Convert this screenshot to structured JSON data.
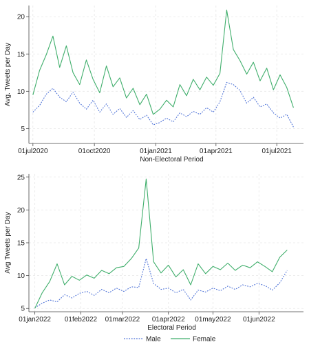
{
  "chart_data": [
    {
      "type": "line",
      "x_type": "date",
      "xlabel": "Non-Electoral Period",
      "ylabel": "Avg. Tweets per Day",
      "xlim": [
        "2020-06-25",
        "2021-08-10"
      ],
      "ylim": [
        3,
        21.5
      ],
      "yticks": [
        5,
        10,
        15,
        20
      ],
      "xticks": [
        {
          "date": "2020-07-01",
          "label": "01jul2020"
        },
        {
          "date": "2020-10-01",
          "label": "01oct2020"
        },
        {
          "date": "2021-01-01",
          "label": "01jan2021"
        },
        {
          "date": "2021-04-01",
          "label": "01apr2021"
        },
        {
          "date": "2021-07-01",
          "label": "01jul2021"
        }
      ],
      "grid": true,
      "series": [
        {
          "name": "Male",
          "color": "#4a6fd6",
          "style": "dotted",
          "x": [
            "2020-07-01",
            "2020-07-11",
            "2020-07-21",
            "2020-07-31",
            "2020-08-10",
            "2020-08-20",
            "2020-08-30",
            "2020-09-09",
            "2020-09-19",
            "2020-09-29",
            "2020-10-09",
            "2020-10-19",
            "2020-10-29",
            "2020-11-08",
            "2020-11-18",
            "2020-11-28",
            "2020-12-08",
            "2020-12-18",
            "2020-12-28",
            "2021-01-07",
            "2021-01-17",
            "2021-01-27",
            "2021-02-06",
            "2021-02-16",
            "2021-02-26",
            "2021-03-08",
            "2021-03-18",
            "2021-03-28",
            "2021-04-07",
            "2021-04-17",
            "2021-04-27",
            "2021-05-07",
            "2021-05-17",
            "2021-05-27",
            "2021-06-06",
            "2021-06-16",
            "2021-06-26",
            "2021-07-06",
            "2021-07-16",
            "2021-07-26"
          ],
          "values": [
            7.2,
            8.1,
            9.6,
            10.4,
            9.2,
            8.6,
            9.9,
            8.4,
            7.6,
            8.8,
            7.2,
            8.3,
            6.9,
            7.7,
            6.5,
            7.4,
            6.2,
            6.8,
            5.5,
            5.8,
            6.4,
            5.9,
            7.1,
            6.6,
            7.3,
            6.9,
            7.8,
            7.2,
            8.6,
            11.2,
            10.9,
            10.1,
            8.4,
            9.2,
            7.9,
            8.3,
            7.1,
            6.4,
            6.9,
            5.2
          ]
        },
        {
          "name": "Female",
          "color": "#3fae6b",
          "style": "solid",
          "x": [
            "2020-07-01",
            "2020-07-11",
            "2020-07-21",
            "2020-07-31",
            "2020-08-10",
            "2020-08-20",
            "2020-08-30",
            "2020-09-09",
            "2020-09-19",
            "2020-09-29",
            "2020-10-09",
            "2020-10-19",
            "2020-10-29",
            "2020-11-08",
            "2020-11-18",
            "2020-11-28",
            "2020-12-08",
            "2020-12-18",
            "2020-12-28",
            "2021-01-07",
            "2021-01-17",
            "2021-01-27",
            "2021-02-06",
            "2021-02-16",
            "2021-02-26",
            "2021-03-08",
            "2021-03-18",
            "2021-03-28",
            "2021-04-07",
            "2021-04-17",
            "2021-04-27",
            "2021-05-07",
            "2021-05-17",
            "2021-05-27",
            "2021-06-06",
            "2021-06-16",
            "2021-06-26",
            "2021-07-06",
            "2021-07-16",
            "2021-07-26"
          ],
          "values": [
            9.5,
            12.8,
            14.9,
            17.4,
            13.2,
            16.1,
            12.5,
            10.9,
            14.2,
            11.6,
            9.8,
            13.4,
            10.6,
            11.8,
            9.1,
            10.4,
            8.2,
            9.6,
            6.9,
            7.6,
            8.8,
            7.9,
            10.9,
            9.4,
            11.6,
            10.2,
            11.9,
            10.8,
            12.4,
            20.9,
            15.6,
            14.1,
            12.3,
            13.9,
            11.4,
            13.1,
            10.2,
            12.2,
            10.5,
            7.8
          ]
        }
      ]
    },
    {
      "type": "line",
      "x_type": "date",
      "xlabel": "Electoral Period",
      "ylabel": "Avg Tweets per Day",
      "xlim": [
        "2021-12-28",
        "2022-07-01"
      ],
      "ylim": [
        4.5,
        25.5
      ],
      "yticks": [
        5,
        10,
        15,
        20,
        25
      ],
      "xticks": [
        {
          "date": "2022-01-01",
          "label": "01jan2022"
        },
        {
          "date": "2022-02-01",
          "label": "01feb2022"
        },
        {
          "date": "2022-03-01",
          "label": "01mar2022"
        },
        {
          "date": "2022-04-01",
          "label": "01apr2022"
        },
        {
          "date": "2022-05-01",
          "label": "01may2022"
        },
        {
          "date": "2022-06-01",
          "label": "01jun2022"
        }
      ],
      "grid": true,
      "series": [
        {
          "name": "Male",
          "color": "#4a6fd6",
          "style": "dotted",
          "x": [
            "2022-01-01",
            "2022-01-06",
            "2022-01-11",
            "2022-01-16",
            "2022-01-21",
            "2022-01-26",
            "2022-01-31",
            "2022-02-05",
            "2022-02-10",
            "2022-02-15",
            "2022-02-20",
            "2022-02-25",
            "2022-03-02",
            "2022-03-07",
            "2022-03-12",
            "2022-03-17",
            "2022-03-22",
            "2022-03-27",
            "2022-04-01",
            "2022-04-06",
            "2022-04-11",
            "2022-04-16",
            "2022-04-21",
            "2022-04-26",
            "2022-05-01",
            "2022-05-06",
            "2022-05-11",
            "2022-05-16",
            "2022-05-21",
            "2022-05-26",
            "2022-05-31",
            "2022-06-05",
            "2022-06-10",
            "2022-06-15",
            "2022-06-20"
          ],
          "values": [
            5.1,
            5.8,
            6.3,
            6.0,
            7.1,
            6.6,
            7.3,
            7.6,
            7.0,
            7.9,
            7.4,
            8.1,
            7.6,
            8.3,
            8.2,
            12.6,
            8.8,
            7.9,
            8.1,
            7.4,
            7.9,
            6.3,
            7.8,
            7.5,
            8.1,
            7.7,
            8.4,
            7.9,
            8.6,
            8.3,
            8.8,
            8.5,
            7.8,
            8.9,
            10.8
          ]
        },
        {
          "name": "Female",
          "color": "#3fae6b",
          "style": "solid",
          "x": [
            "2022-01-01",
            "2022-01-06",
            "2022-01-11",
            "2022-01-16",
            "2022-01-21",
            "2022-01-26",
            "2022-01-31",
            "2022-02-05",
            "2022-02-10",
            "2022-02-15",
            "2022-02-20",
            "2022-02-25",
            "2022-03-02",
            "2022-03-07",
            "2022-03-12",
            "2022-03-17",
            "2022-03-22",
            "2022-03-27",
            "2022-04-01",
            "2022-04-06",
            "2022-04-11",
            "2022-04-16",
            "2022-04-21",
            "2022-04-26",
            "2022-05-01",
            "2022-05-06",
            "2022-05-11",
            "2022-05-16",
            "2022-05-21",
            "2022-05-26",
            "2022-05-31",
            "2022-06-05",
            "2022-06-10",
            "2022-06-15",
            "2022-06-20"
          ],
          "values": [
            5.0,
            7.4,
            9.1,
            11.8,
            8.6,
            9.9,
            9.3,
            10.1,
            9.6,
            10.8,
            10.3,
            11.2,
            11.4,
            12.6,
            14.2,
            24.7,
            12.1,
            10.4,
            11.6,
            9.8,
            10.9,
            8.6,
            11.8,
            10.3,
            11.4,
            10.9,
            11.9,
            10.8,
            11.6,
            11.2,
            12.1,
            11.4,
            10.6,
            12.8,
            13.9
          ]
        }
      ]
    }
  ],
  "legend": {
    "placement": "bottom-center",
    "items": [
      {
        "label": "Male",
        "color": "#4a6fd6",
        "style": "dotted"
      },
      {
        "label": "Female",
        "color": "#3fae6b",
        "style": "solid"
      }
    ]
  }
}
